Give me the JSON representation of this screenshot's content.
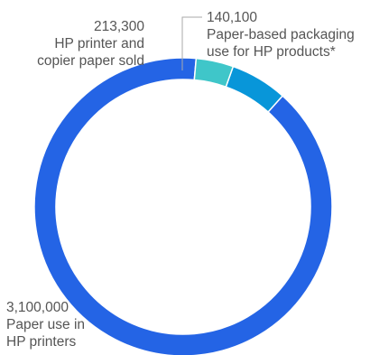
{
  "chart_data": {
    "type": "pie",
    "variant": "donut",
    "title": "",
    "slices": [
      {
        "value": 3100000,
        "value_label": "3,100,000",
        "label_lines": [
          "Paper use in",
          "HP printers"
        ],
        "color": "#2464e5"
      },
      {
        "value": 213300,
        "value_label": "213,300",
        "label_lines": [
          "HP printer and",
          "copier paper sold"
        ],
        "color": "#0896d9"
      },
      {
        "value": 140100,
        "value_label": "140,100",
        "label_lines": [
          "Paper-based packaging",
          "use for HP products*"
        ],
        "color": "#3fc6c9"
      }
    ],
    "start_angle_deg": 5,
    "direction": "counterclockwise",
    "legend": "none",
    "leader_line_color": "#aaaaaa",
    "label_color": "#555555"
  }
}
